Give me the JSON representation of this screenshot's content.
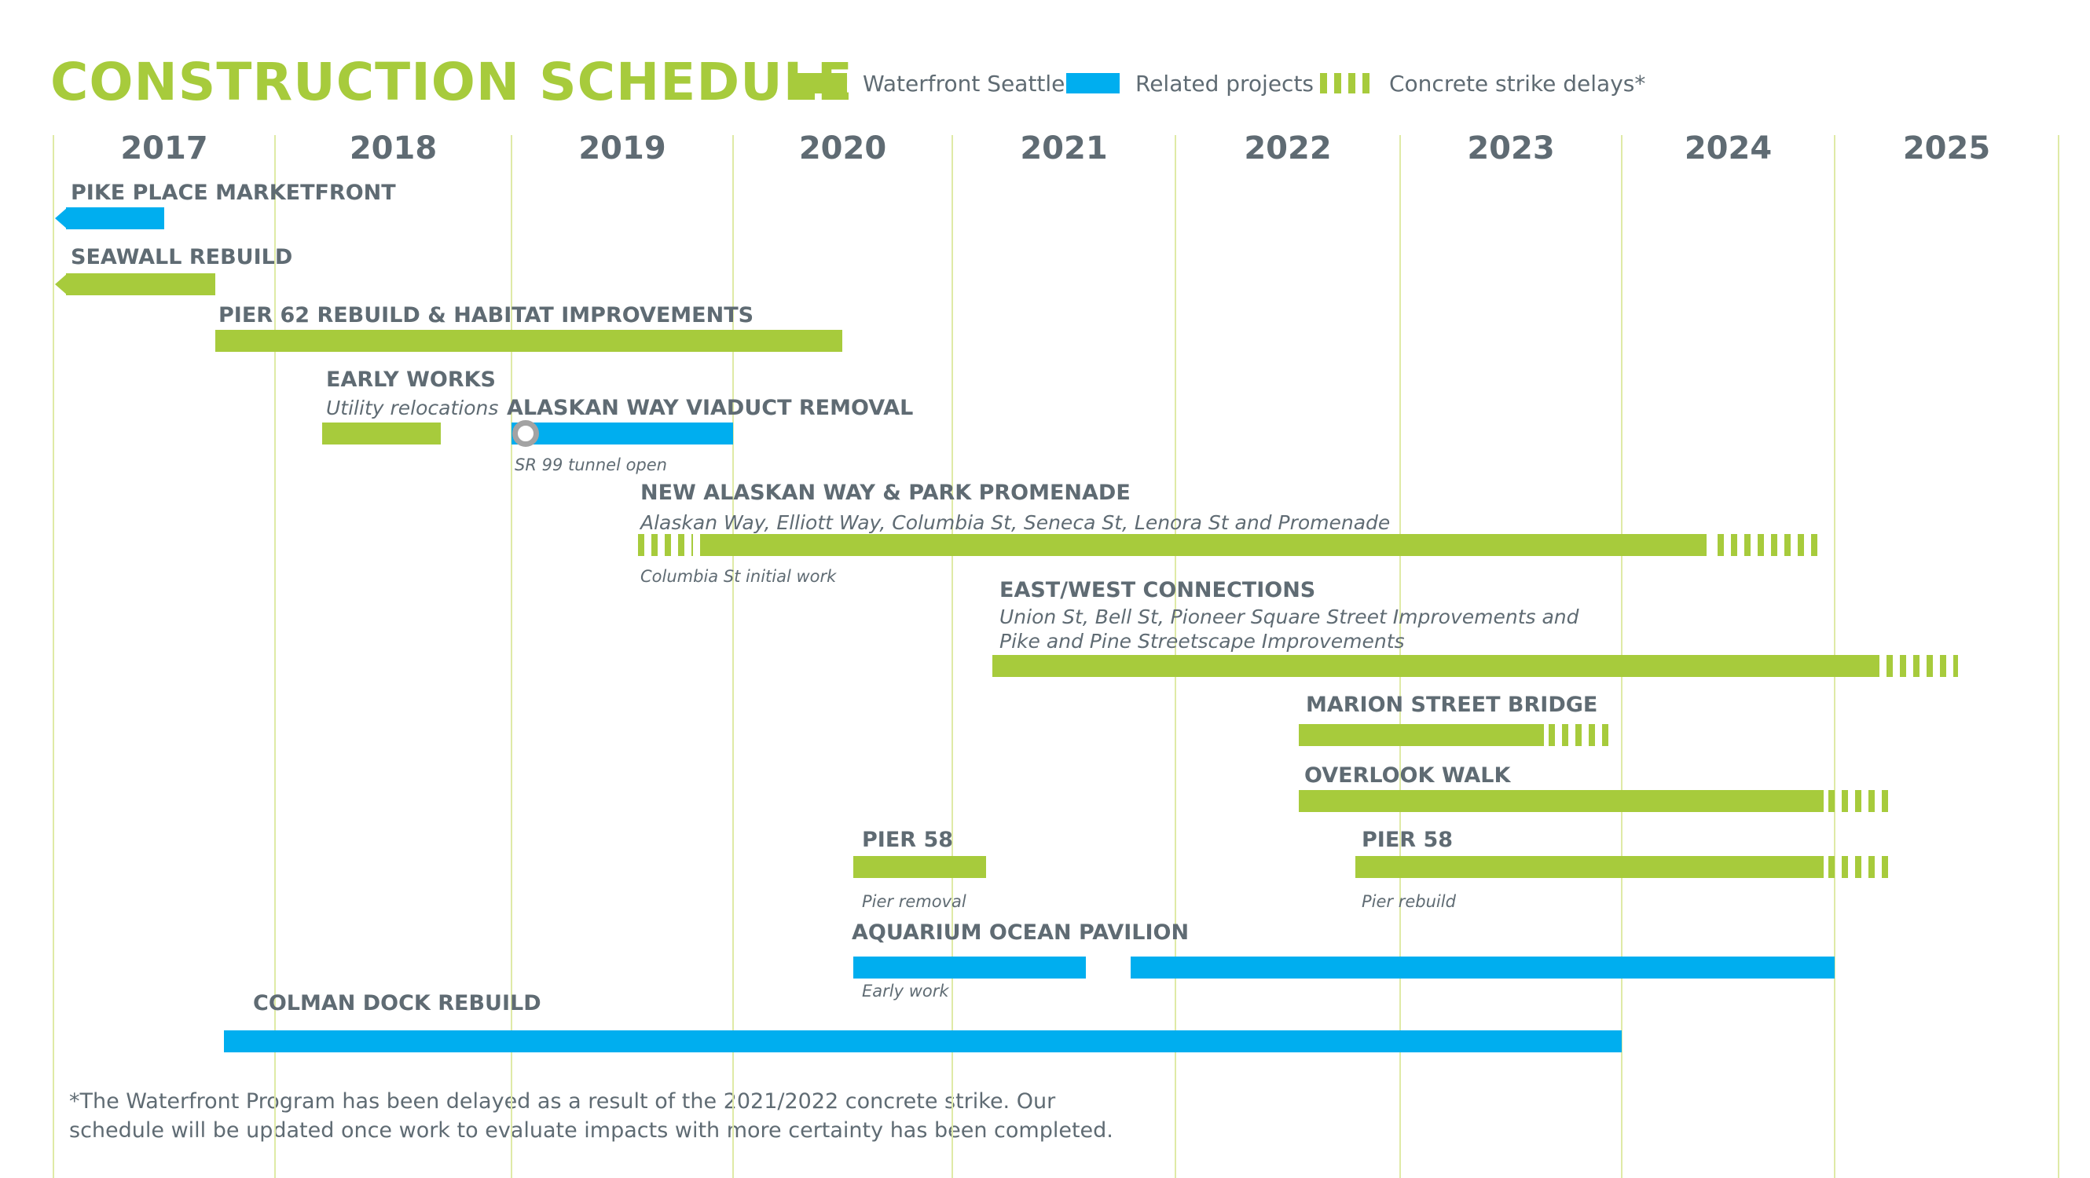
{
  "title": "CONSTRUCTION SCHEDULE",
  "legend": [
    {
      "label": "Waterfront Seattle",
      "style": "green"
    },
    {
      "label": "Related projects",
      "style": "blue"
    },
    {
      "label": "Concrete strike delays*",
      "style": "dash"
    }
  ],
  "colors": {
    "waterfront": "#a7cb3c",
    "related": "#00aeef",
    "text": "#5f6b73",
    "gridline": "#dfeaa6",
    "milestone": "#a3a3a3"
  },
  "chart_data": {
    "type": "gantt",
    "years": [
      "2017",
      "2018",
      "2019",
      "2020",
      "2021",
      "2022",
      "2023",
      "2024",
      "2025"
    ],
    "year_range": [
      2017.0,
      2026.1
    ],
    "tasks": [
      {
        "name": "PIKE PLACE MARKETFRONT",
        "subtitle": "",
        "bars": [
          {
            "type": "related",
            "start": 2017.0,
            "end": 2017.5,
            "continues_before": true
          }
        ]
      },
      {
        "name": "SEAWALL REBUILD",
        "subtitle": "",
        "bars": [
          {
            "type": "waterfront",
            "start": 2017.0,
            "end": 2017.73,
            "continues_before": true
          }
        ]
      },
      {
        "name": "PIER 62 REBUILD & HABITAT IMPROVEMENTS",
        "subtitle": "",
        "bars": [
          {
            "type": "waterfront",
            "start": 2017.73,
            "end": 2020.5
          }
        ]
      },
      {
        "name": "EARLY WORKS",
        "subtitle": "Utility relocations",
        "bars": [
          {
            "type": "waterfront",
            "start": 2018.2,
            "end": 2018.7
          }
        ]
      },
      {
        "name": "ALASKAN WAY VIADUCT REMOVAL",
        "subtitle": "",
        "note": "SR 99 tunnel open",
        "milestone": 2019.0,
        "bars": [
          {
            "type": "related",
            "start": 2019.0,
            "end": 2020.0
          }
        ]
      },
      {
        "name": "NEW ALASKAN WAY & PARK PROMENADE",
        "subtitle": "Alaskan Way, Elliott Way, Columbia St, Seneca St, Lenora St and Promenade",
        "note": "Columbia St initial work",
        "bars": [
          {
            "type": "delay",
            "start": 2019.57,
            "end": 2019.82
          },
          {
            "type": "waterfront",
            "start": 2019.85,
            "end": 2024.4
          },
          {
            "type": "delay",
            "start": 2024.45,
            "end": 2024.95
          }
        ]
      },
      {
        "name": "EAST/WEST CONNECTIONS",
        "subtitle": [
          "Union St, Bell St, Pioneer Square Street Improvements and",
          "Pike and Pine Streetscape Improvements"
        ],
        "bars": [
          {
            "type": "waterfront",
            "start": 2021.18,
            "end": 2025.2
          },
          {
            "type": "delay",
            "start": 2025.23,
            "end": 2025.55
          }
        ]
      },
      {
        "name": "MARION STREET BRIDGE",
        "subtitle": "",
        "bars": [
          {
            "type": "waterfront",
            "start": 2022.55,
            "end": 2023.65
          },
          {
            "type": "delay",
            "start": 2023.67,
            "end": 2023.95
          }
        ]
      },
      {
        "name": "OVERLOOK WALK",
        "subtitle": "",
        "bars": [
          {
            "type": "waterfront",
            "start": 2022.55,
            "end": 2024.95
          },
          {
            "type": "delay",
            "start": 2024.97,
            "end": 2025.25
          }
        ]
      },
      {
        "name": "PIER 58",
        "subtitle": "",
        "note": "Pier removal",
        "bars": [
          {
            "type": "waterfront",
            "start": 2020.55,
            "end": 2021.15
          }
        ]
      },
      {
        "name": "PIER 58",
        "subtitle": "",
        "note": "Pier rebuild",
        "bars": [
          {
            "type": "waterfront",
            "start": 2022.8,
            "end": 2024.95
          },
          {
            "type": "delay",
            "start": 2024.97,
            "end": 2025.25
          }
        ]
      },
      {
        "name": "AQUARIUM OCEAN PAVILION",
        "subtitle": "",
        "note": "Early work",
        "bars": [
          {
            "type": "related",
            "start": 2020.55,
            "end": 2021.6
          },
          {
            "type": "related",
            "start": 2021.8,
            "end": 2025.0
          }
        ]
      },
      {
        "name": "COLMAN DOCK REBUILD",
        "subtitle": "",
        "bars": [
          {
            "type": "related",
            "start": 2017.77,
            "end": 2024.0
          }
        ]
      }
    ]
  },
  "footnote": [
    "*The Waterfront Program has been delayed as a result of the 2021/2022 concrete strike. Our",
    "schedule will be updated once work to evaluate impacts with more certainty has been completed."
  ]
}
